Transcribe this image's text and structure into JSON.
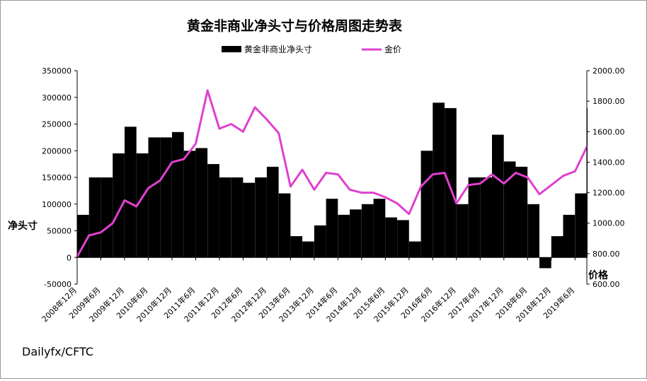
{
  "chart_data": {
    "type": "bar+line",
    "title": "黄金非商业净头寸与价格周图走势表",
    "source": "Dailyfx/CFTC",
    "legend": {
      "position": "top",
      "items": [
        "黄金非商业净头寸",
        "金价"
      ]
    },
    "ylabel_left": "净头寸",
    "ylabel_right": "价格",
    "ylim_left": [
      -50000,
      350000
    ],
    "ylim_right": [
      600,
      2000
    ],
    "yticks_left": [
      "350000",
      "300000",
      "250000",
      "200000",
      "150000",
      "100000",
      "50000",
      "0",
      "-50000"
    ],
    "yticks_right": [
      "2000.00",
      "1800.00",
      "1600.00",
      "1400.00",
      "1200.00",
      "1000.00",
      "800.00",
      "600.00"
    ],
    "x_categories": [
      "2008年12月",
      "2009年6月",
      "2009年12月",
      "2010年6月",
      "2010年12月",
      "2011年6月",
      "2011年12月",
      "2012年6月",
      "2012年12月",
      "2013年6月",
      "2013年12月",
      "2014年6月",
      "2014年12月",
      "2015年6月",
      "2015年12月",
      "2016年6月",
      "2016年12月",
      "2017年6月",
      "2017年12月",
      "2018年6月",
      "2018年12月",
      "2019年6月"
    ],
    "x_start": "2008年12月",
    "x_end": "2019年9月",
    "series": [
      {
        "name": "黄金非商业净头寸",
        "type": "bar",
        "axis": "left",
        "color": "#000000",
        "points": [
          [
            "2008年12月",
            80000
          ],
          [
            "2009年3月",
            150000
          ],
          [
            "2009年6月",
            150000
          ],
          [
            "2009年9月",
            195000
          ],
          [
            "2009年12月",
            245000
          ],
          [
            "2010年3月",
            195000
          ],
          [
            "2010年6月",
            225000
          ],
          [
            "2010年9月",
            225000
          ],
          [
            "2010年12月",
            235000
          ],
          [
            "2011年3月",
            200000
          ],
          [
            "2011年6月",
            205000
          ],
          [
            "2011年9月",
            175000
          ],
          [
            "2011年12月",
            150000
          ],
          [
            "2012年3月",
            150000
          ],
          [
            "2012年6月",
            140000
          ],
          [
            "2012年9月",
            150000
          ],
          [
            "2012年12月",
            170000
          ],
          [
            "2013年3月",
            120000
          ],
          [
            "2013年6月",
            40000
          ],
          [
            "2013年9月",
            30000
          ],
          [
            "2013年12月",
            60000
          ],
          [
            "2014年3月",
            110000
          ],
          [
            "2014年6月",
            80000
          ],
          [
            "2014年9月",
            90000
          ],
          [
            "2014年12月",
            100000
          ],
          [
            "2015年3月",
            110000
          ],
          [
            "2015年6月",
            75000
          ],
          [
            "2015年9月",
            70000
          ],
          [
            "2015年12月",
            30000
          ],
          [
            "2016年3月",
            200000
          ],
          [
            "2016年6月",
            290000
          ],
          [
            "2016年9月",
            280000
          ],
          [
            "2016年12月",
            100000
          ],
          [
            "2017年3月",
            150000
          ],
          [
            "2017年6月",
            150000
          ],
          [
            "2017年9月",
            230000
          ],
          [
            "2017年12月",
            180000
          ],
          [
            "2018年3月",
            170000
          ],
          [
            "2018年6月",
            100000
          ],
          [
            "2018年9月",
            -20000
          ],
          [
            "2018年12月",
            40000
          ],
          [
            "2019年3月",
            80000
          ],
          [
            "2019年6月",
            120000
          ],
          [
            "2019年9月",
            280000
          ]
        ]
      },
      {
        "name": "金价",
        "type": "line",
        "axis": "right",
        "color": "#e040d0",
        "points": [
          [
            "2008年12月",
            780
          ],
          [
            "2009年3月",
            920
          ],
          [
            "2009年6月",
            940
          ],
          [
            "2009年9月",
            1000
          ],
          [
            "2009年12月",
            1150
          ],
          [
            "2010年3月",
            1110
          ],
          [
            "2010年6月",
            1230
          ],
          [
            "2010年9月",
            1280
          ],
          [
            "2010年12月",
            1400
          ],
          [
            "2011年3月",
            1420
          ],
          [
            "2011年6月",
            1520
          ],
          [
            "2011年9月",
            1870
          ],
          [
            "2011年12月",
            1620
          ],
          [
            "2012年3月",
            1650
          ],
          [
            "2012年6月",
            1600
          ],
          [
            "2012年9月",
            1760
          ],
          [
            "2012年12月",
            1680
          ],
          [
            "2013年3月",
            1590
          ],
          [
            "2013年6月",
            1240
          ],
          [
            "2013年9月",
            1350
          ],
          [
            "2013年12月",
            1220
          ],
          [
            "2014年3月",
            1330
          ],
          [
            "2014年6月",
            1320
          ],
          [
            "2014年9月",
            1220
          ],
          [
            "2014年12月",
            1200
          ],
          [
            "2015年3月",
            1200
          ],
          [
            "2015年6月",
            1170
          ],
          [
            "2015年9月",
            1130
          ],
          [
            "2015年12月",
            1060
          ],
          [
            "2016年3月",
            1240
          ],
          [
            "2016年6月",
            1320
          ],
          [
            "2016年9月",
            1330
          ],
          [
            "2016年12月",
            1130
          ],
          [
            "2017年3月",
            1250
          ],
          [
            "2017年6月",
            1260
          ],
          [
            "2017年9月",
            1320
          ],
          [
            "2017年12月",
            1260
          ],
          [
            "2018年3月",
            1330
          ],
          [
            "2018年6月",
            1300
          ],
          [
            "2018年9月",
            1190
          ],
          [
            "2018年12月",
            1250
          ],
          [
            "2019年3月",
            1310
          ],
          [
            "2019年6月",
            1340
          ],
          [
            "2019年9月",
            1500
          ]
        ]
      }
    ]
  }
}
